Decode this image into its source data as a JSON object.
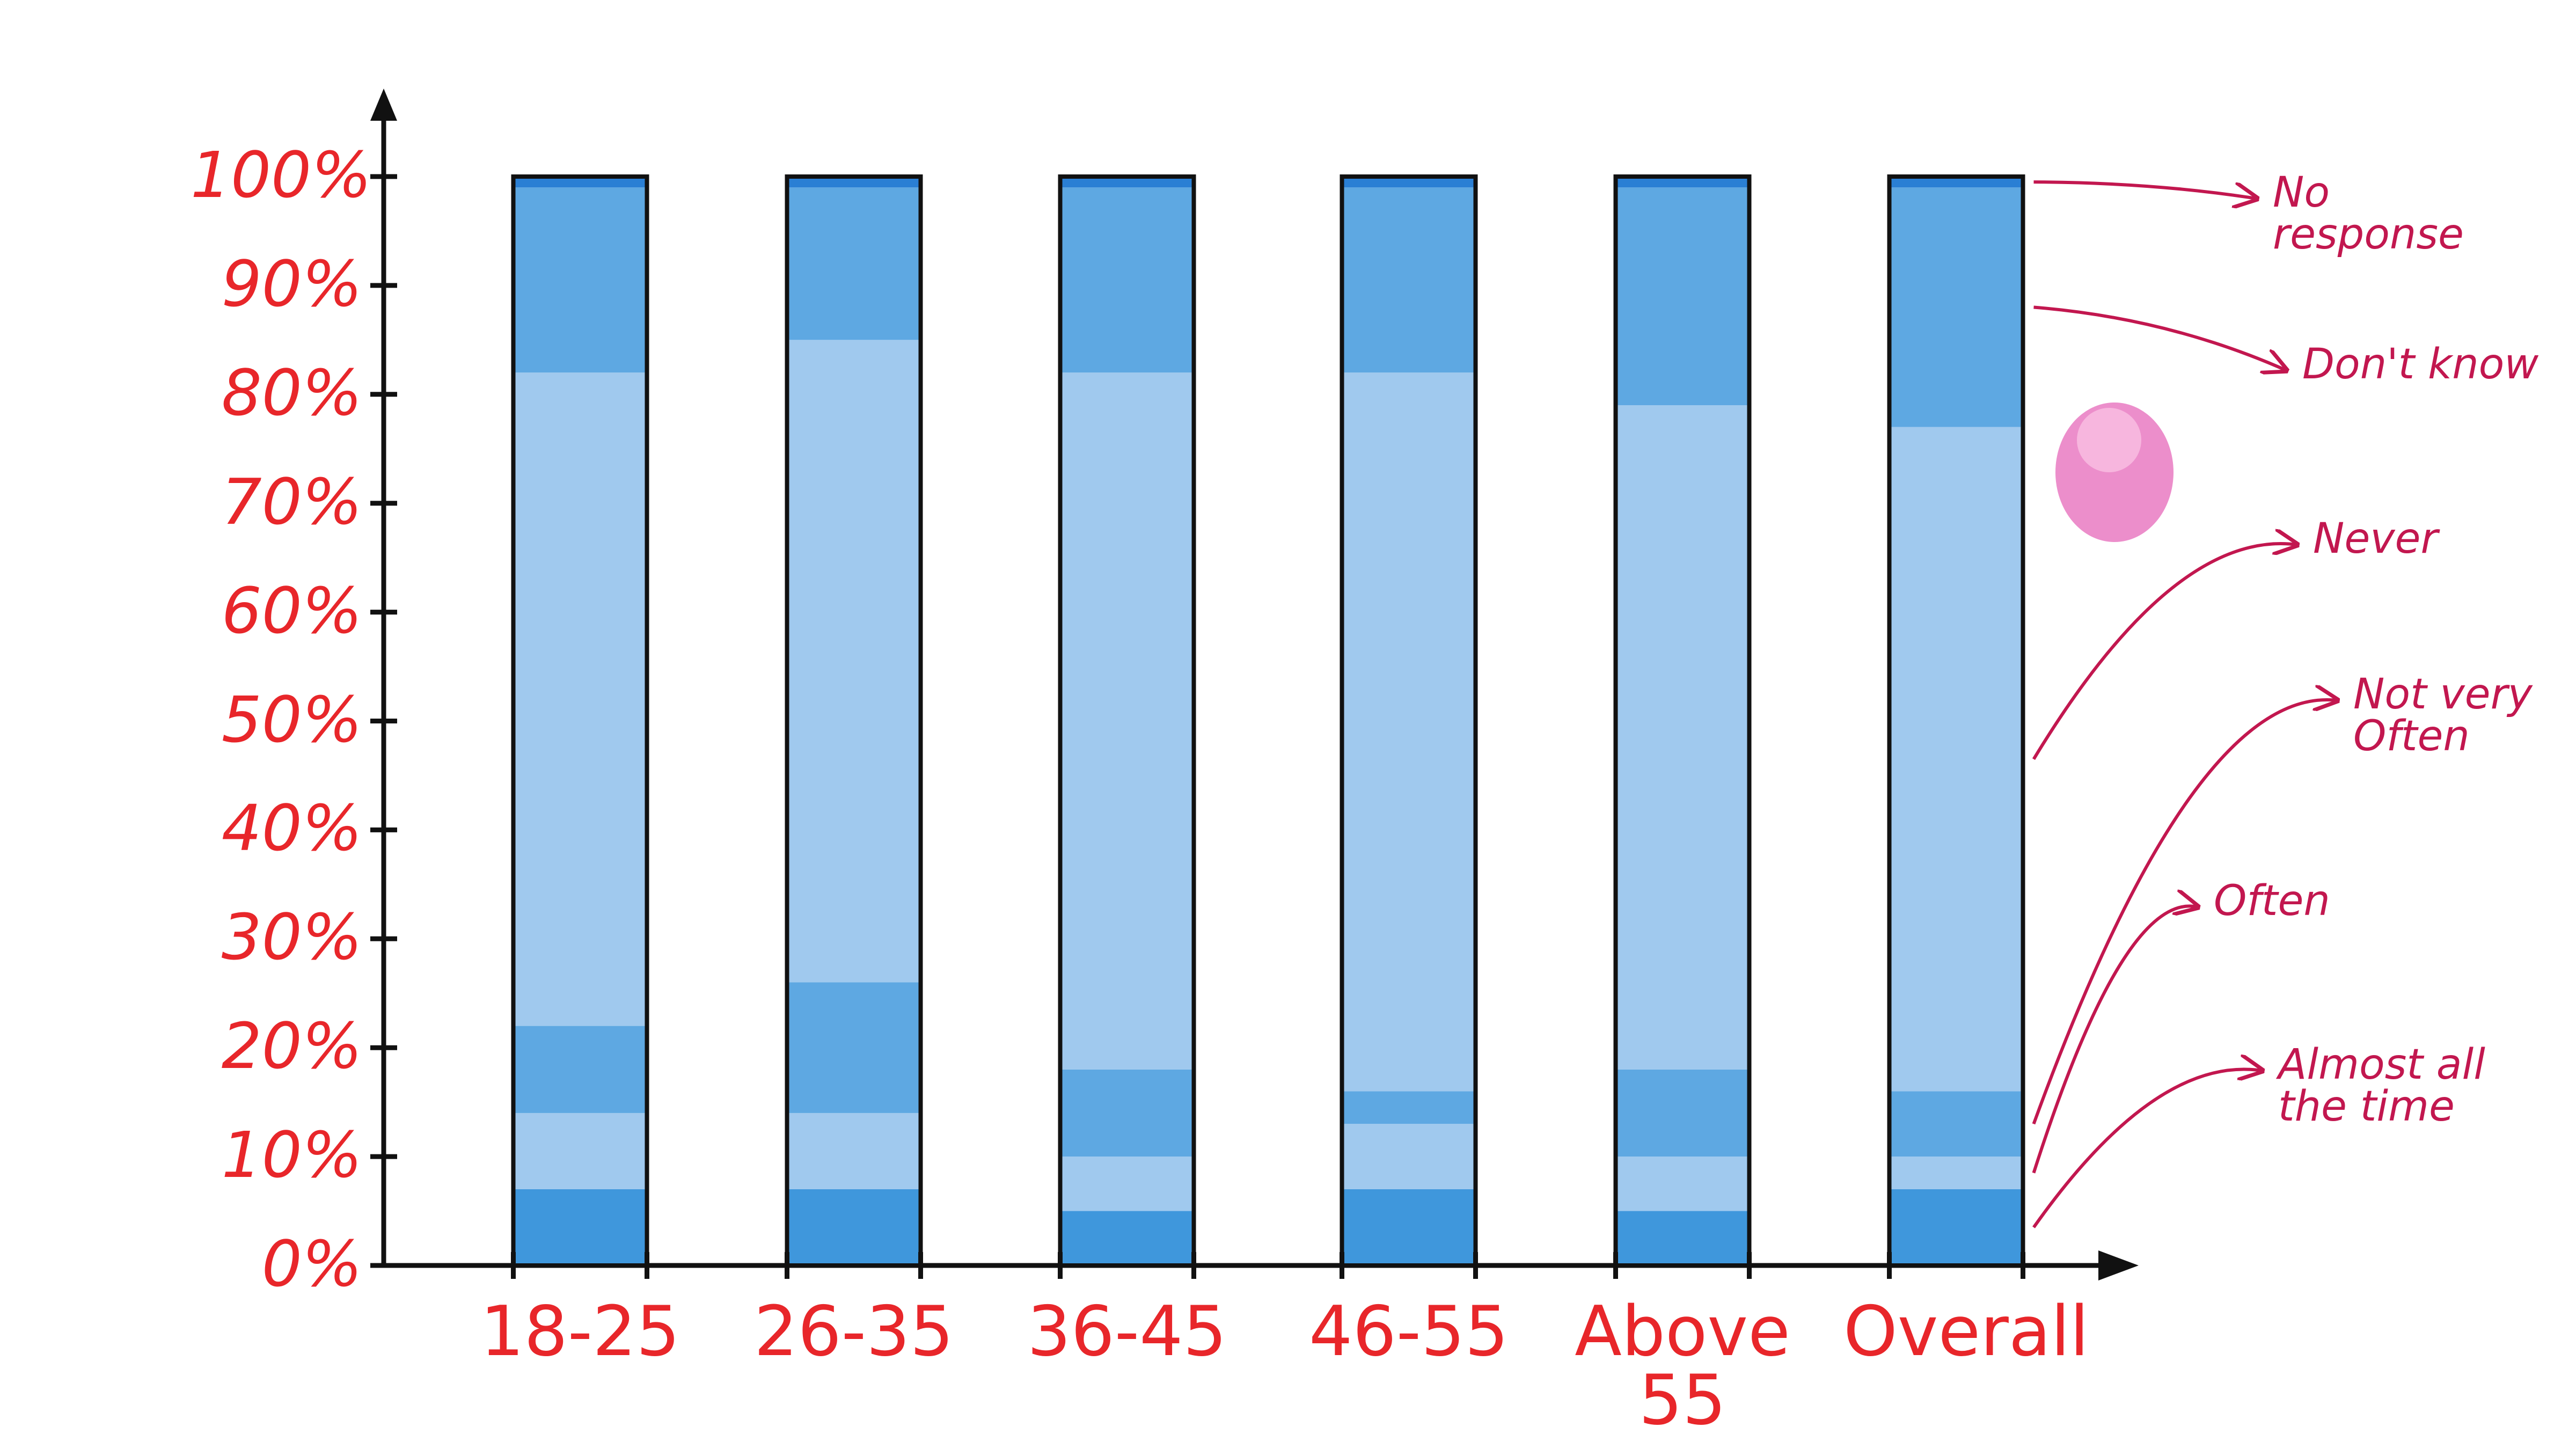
{
  "chart_data": {
    "type": "stacked_bar",
    "categories": [
      "18-25",
      "26-35",
      "36-45",
      "46-55",
      "Above 55",
      "Overall"
    ],
    "series": [
      {
        "name": "Almost all the time",
        "color": "#3f97dc",
        "values": [
          7,
          7,
          5,
          7,
          5,
          7
        ]
      },
      {
        "name": "Often",
        "color": "#a0c9ee",
        "values": [
          7,
          7,
          5,
          6,
          5,
          3
        ]
      },
      {
        "name": "Not very Often",
        "color": "#5ea8e2",
        "values": [
          8,
          12,
          8,
          3,
          8,
          6
        ]
      },
      {
        "name": "Never",
        "color": "#a0c9ee",
        "values": [
          60,
          59,
          64,
          66,
          61,
          61
        ]
      },
      {
        "name": "Don't know",
        "color": "#5ea8e2",
        "values": [
          17,
          14,
          17,
          17,
          20,
          22
        ]
      },
      {
        "name": "No response",
        "color": "#2a7fd4",
        "values": [
          1,
          1,
          1,
          1,
          1,
          1
        ]
      }
    ],
    "ylim": [
      0,
      100
    ],
    "yticks": [
      {
        "value": 0,
        "label": "0%"
      },
      {
        "value": 10,
        "label": "10%"
      },
      {
        "value": 20,
        "label": "20%"
      },
      {
        "value": 30,
        "label": "30%"
      },
      {
        "value": 40,
        "label": "40%"
      },
      {
        "value": 50,
        "label": "50%"
      },
      {
        "value": 60,
        "label": "60%"
      },
      {
        "value": 70,
        "label": "70%"
      },
      {
        "value": 80,
        "label": "80%"
      },
      {
        "value": 90,
        "label": "90%"
      },
      {
        "value": 100,
        "label": "100%"
      }
    ],
    "legend": "right"
  }
}
